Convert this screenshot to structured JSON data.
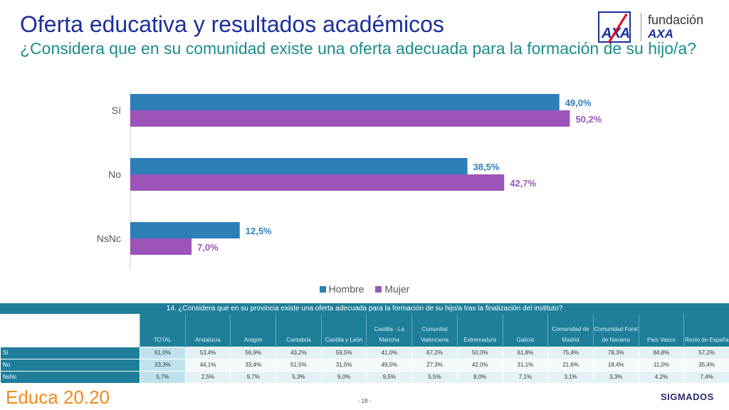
{
  "header": {
    "title": "Oferta educativa y resultados académicos",
    "question": "¿Considera que en su comunidad existe una oferta adecuada para la formación de su hijo/a?"
  },
  "logo": {
    "brand": "AXA",
    "fundacion": "fundación",
    "axa": "AXA"
  },
  "colors": {
    "hombre": "#2e7eb8",
    "mujer": "#9b55b9",
    "title": "#1a2f9c",
    "teal": "#1f7f9a"
  },
  "chart_data": {
    "type": "bar",
    "orientation": "horizontal",
    "categories": [
      "Sí",
      "No",
      "NsNc"
    ],
    "series": [
      {
        "name": "Hombre",
        "values": [
          49.0,
          38.5,
          12.5
        ]
      },
      {
        "name": "Mujer",
        "values": [
          50.2,
          42.7,
          7.0
        ]
      }
    ],
    "data_labels": [
      [
        "49,0%",
        "38,5%",
        "12,5%"
      ],
      [
        "50,2%",
        "42,7%",
        "7,0%"
      ]
    ],
    "xlim": [
      0,
      55
    ],
    "grid": false,
    "legend": "bottom"
  },
  "table": {
    "title": "14. ¿Considera que en su provincia existe una oferta adecuada para la formación de su hijo/a tras la finalización del instituto?",
    "columns": [
      "TOTAL",
      "Andalucía",
      "Aragón",
      "Cantabria",
      "Castilla y León",
      "Castilla - La Mancha",
      "Comunitat Valenciana",
      "Extremadura",
      "Galicia",
      "Comunidad de Madrid",
      "Comunidad Foral de Navarra",
      "País Vasco",
      "Resto de España"
    ],
    "rows": [
      {
        "label": "Sí",
        "values": [
          "61,0%",
          "53,4%",
          "56,9%",
          "43,2%",
          "59,5%",
          "41,0%",
          "67,2%",
          "50,0%",
          "61,8%",
          "75,4%",
          "78,3%",
          "84,8%",
          "57,2%"
        ]
      },
      {
        "label": "No",
        "values": [
          "33,3%",
          "44,1%",
          "33,4%",
          "51,5%",
          "31,5%",
          "49,5%",
          "27,3%",
          "42,0%",
          "31,1%",
          "21,6%",
          "18,4%",
          "11,0%",
          "35,4%"
        ]
      },
      {
        "label": "NsNc",
        "values": [
          "5,7%",
          "2,5%",
          "9,7%",
          "5,3%",
          "9,0%",
          "9,5%",
          "5,5%",
          "8,0%",
          "7,1%",
          "3,1%",
          "3,3%",
          "4,2%",
          "7,4%"
        ]
      }
    ]
  },
  "footer": {
    "logo": "Educa 20.20",
    "page": "- 18 -",
    "company": "SIGMADOS"
  }
}
